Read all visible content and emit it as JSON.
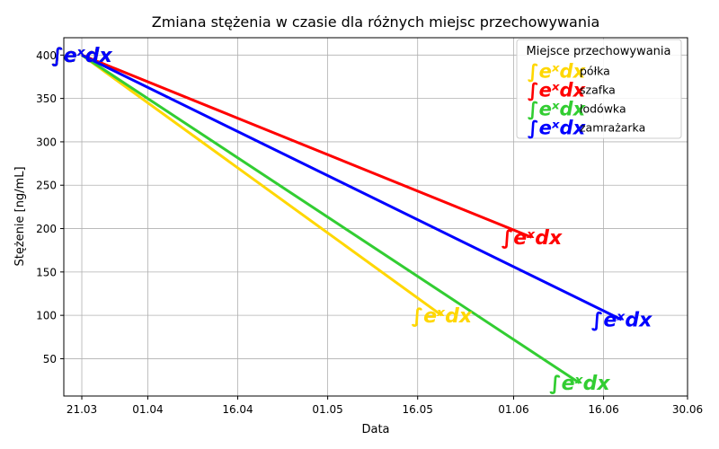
{
  "chart_data": {
    "type": "line",
    "title": "Zmiana stężenia w czasie dla różnych miejsc przechowywania",
    "xlabel": "Data",
    "ylabel": "Stężenie [ng/mL]",
    "x_ticks": [
      "21.03",
      "01.04",
      "16.04",
      "01.05",
      "16.05",
      "01.06",
      "16.06",
      "30.06"
    ],
    "x_tick_days": [
      0,
      11,
      26,
      41,
      56,
      72,
      87,
      101
    ],
    "xlim_days": [
      -3,
      101
    ],
    "y_ticks": [
      50,
      100,
      150,
      200,
      250,
      300,
      350,
      400
    ],
    "ylim": [
      7,
      420
    ],
    "grid": true,
    "legend_title": "Miejsce przechowywania",
    "legend_position": "top-right",
    "marker_symbol": "∫eˣdx",
    "series": [
      {
        "name": "półka",
        "color": "#FFD700",
        "x_days": [
          0,
          60
        ],
        "values": [
          400,
          100
        ]
      },
      {
        "name": "szafka",
        "color": "#FF0000",
        "x_days": [
          0,
          75
        ],
        "values": [
          400,
          190
        ]
      },
      {
        "name": "lodówka",
        "color": "#32CD32",
        "x_days": [
          0,
          83
        ],
        "values": [
          400,
          22
        ]
      },
      {
        "name": "zamrażarka",
        "color": "#0000FF",
        "x_days": [
          0,
          90
        ],
        "values": [
          400,
          95
        ]
      }
    ]
  }
}
